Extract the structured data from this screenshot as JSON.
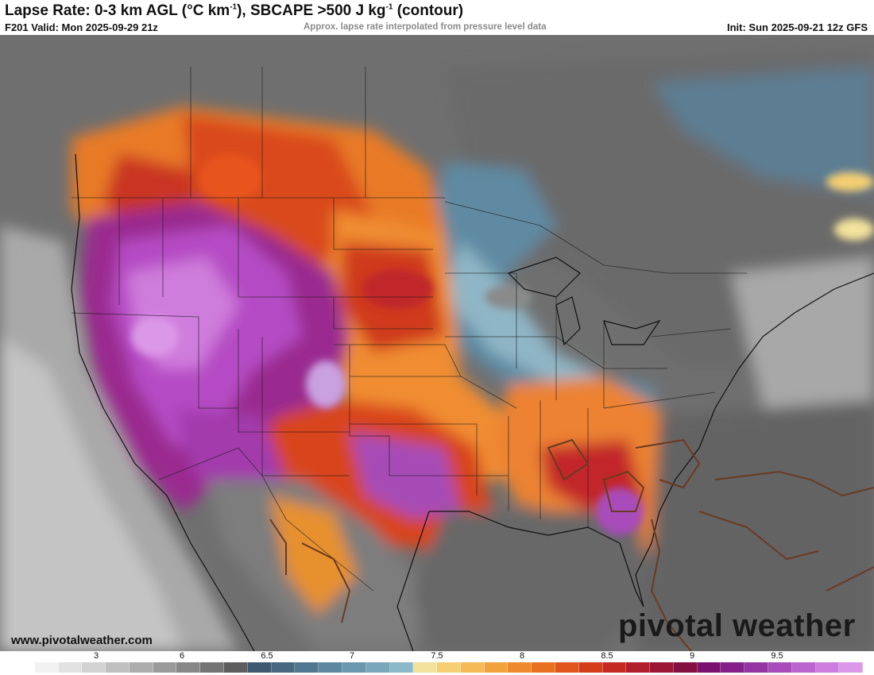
{
  "header": {
    "title_main": "Lapse Rate: 0-3 km AGL (°C km",
    "title_sup1": "-1",
    "title_mid": "), SBCAPE >500 J kg",
    "title_sup2": "-1",
    "title_end": " (contour)",
    "valid": "F201 Valid: Mon 2025-09-29 21z",
    "note": "Approx. lapse rate interpolated from pressure level data",
    "init": "Init: Sun 2025-09-21 12z GFS"
  },
  "footer": {
    "website": "www.pivotalweather.com",
    "brand": "pivotal weather"
  },
  "legend": {
    "ticks": [
      "3",
      "6",
      "6.5",
      "7",
      "7.5",
      "8",
      "8.5",
      "9",
      "9.5"
    ],
    "colors": [
      "#ffffff",
      "#f2f2f2",
      "#e2e2e2",
      "#d2d2d2",
      "#c0c0c0",
      "#adadad",
      "#9a9a9a",
      "#878787",
      "#747474",
      "#5e5e5e",
      "#3f5a70",
      "#47687f",
      "#52788f",
      "#5e889f",
      "#6b97ae",
      "#7ba7bb",
      "#8db8c8",
      "#f3e29b",
      "#f5cf72",
      "#f5b955",
      "#f2a23d",
      "#ee8a2d",
      "#e87022",
      "#e0561a",
      "#d43d1a",
      "#c42a22",
      "#b01e2b",
      "#9a1634",
      "#84103f",
      "#7a1070",
      "#85208a",
      "#9535a3",
      "#a84cbb",
      "#bb63cf",
      "#cc7ddd",
      "#dc98e8"
    ]
  },
  "colors": {
    "ocean": "#6f6f6f",
    "high_lapse": "#b84fc8",
    "moderate_lapse": "#ee7d2a",
    "stable": "#5a7a8f",
    "cape_contour": "#6a3a22"
  }
}
